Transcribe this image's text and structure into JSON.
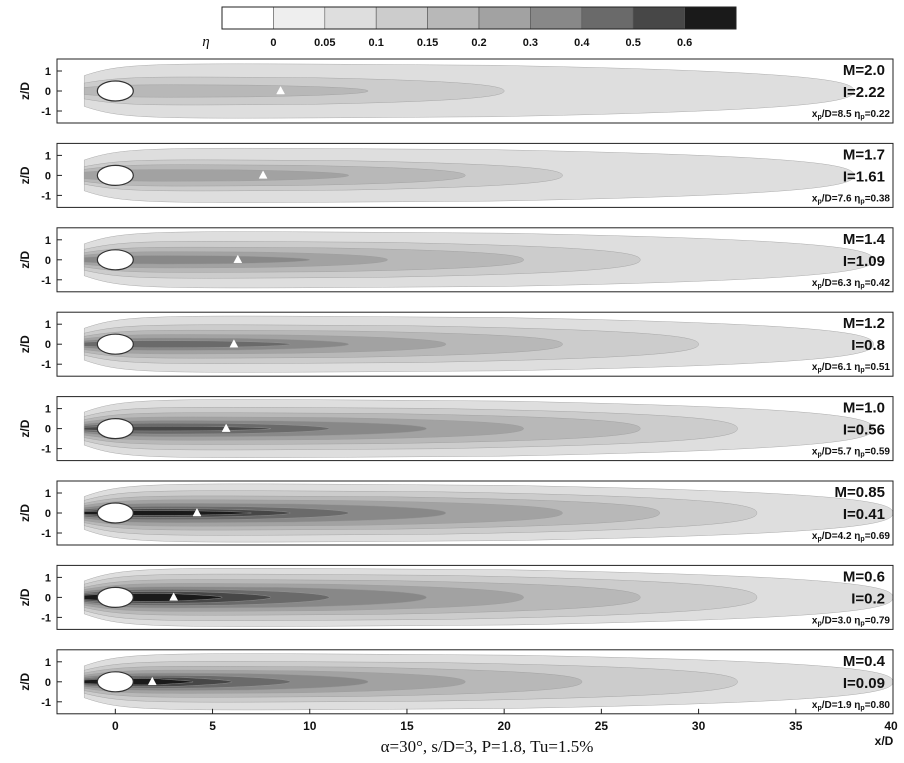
{
  "colorbar": {
    "symbol": "η",
    "levels": [
      0,
      0.05,
      0.1,
      0.15,
      0.2,
      0.3,
      0.4,
      0.5,
      0.6
    ],
    "tick_labels": [
      "0",
      "0.05",
      "0.1",
      "0.15",
      "0.2",
      "0.3",
      "0.4",
      "0.5",
      "0.6"
    ],
    "colors": [
      "#ffffff",
      "#eeeeee",
      "#dedede",
      "#cccccc",
      "#b8b8b8",
      "#a2a2a2",
      "#888888",
      "#6a6a6a",
      "#474747",
      "#1a1a1a"
    ]
  },
  "chart_data": {
    "type": "heatmap",
    "title": "α=30°, s/D=3, P=1.8, Tu=1.5%",
    "xlabel": "x/D",
    "ylabel": "z/D",
    "xlim": [
      -3,
      40
    ],
    "ylim": [
      -1.6,
      1.6
    ],
    "x_ticks": [
      0,
      5,
      10,
      15,
      20,
      25,
      30,
      35,
      40
    ],
    "x_tick_labels": [
      "0",
      "5",
      "10",
      "15",
      "20",
      "25",
      "30",
      "35",
      "40"
    ],
    "y_ticks": [
      1,
      0,
      -1
    ],
    "y_tick_labels": [
      "1",
      "0",
      "-1"
    ],
    "hole_center_x": 0,
    "hole_diameter": 1,
    "panels": [
      {
        "M_label": "M=2.0",
        "I_label": "I=2.22",
        "peak_label": "xp/D=8.5 ηp=0.22",
        "M": 2.0,
        "I": 2.22,
        "xp": 8.5,
        "etap": 0.22,
        "contours": [
          {
            "level": 0.05,
            "x_end": 38,
            "half_width": 1.4
          },
          {
            "level": 0.1,
            "x_end": 20,
            "half_width": 0.72
          },
          {
            "level": 0.15,
            "x_end": 13,
            "half_width": 0.32
          }
        ]
      },
      {
        "M_label": "M=1.7",
        "I_label": "I=1.61",
        "peak_label": "xp/D=7.6 ηp=0.38",
        "M": 1.7,
        "I": 1.61,
        "xp": 7.6,
        "etap": 0.38,
        "contours": [
          {
            "level": 0.05,
            "x_end": 38,
            "half_width": 1.4
          },
          {
            "level": 0.1,
            "x_end": 23,
            "half_width": 0.8
          },
          {
            "level": 0.15,
            "x_end": 18,
            "half_width": 0.55
          },
          {
            "level": 0.2,
            "x_end": 12,
            "half_width": 0.3
          }
        ]
      },
      {
        "M_label": "M=1.4",
        "I_label": "I=1.09",
        "peak_label": "xp/D=6.3 ηp=0.42",
        "M": 1.4,
        "I": 1.09,
        "xp": 6.3,
        "etap": 0.42,
        "contours": [
          {
            "level": 0.05,
            "x_end": 39,
            "half_width": 1.45
          },
          {
            "level": 0.1,
            "x_end": 27,
            "half_width": 0.95
          },
          {
            "level": 0.15,
            "x_end": 21,
            "half_width": 0.65
          },
          {
            "level": 0.2,
            "x_end": 14,
            "half_width": 0.42
          },
          {
            "level": 0.3,
            "x_end": 10,
            "half_width": 0.22
          }
        ]
      },
      {
        "M_label": "M=1.2",
        "I_label": "I=0.8",
        "peak_label": "xp/D=6.1 ηp=0.51",
        "M": 1.2,
        "I": 0.8,
        "xp": 6.1,
        "etap": 0.51,
        "contours": [
          {
            "level": 0.05,
            "x_end": 39,
            "half_width": 1.45
          },
          {
            "level": 0.1,
            "x_end": 30,
            "half_width": 1.0
          },
          {
            "level": 0.15,
            "x_end": 23,
            "half_width": 0.72
          },
          {
            "level": 0.2,
            "x_end": 17,
            "half_width": 0.5
          },
          {
            "level": 0.3,
            "x_end": 12,
            "half_width": 0.32
          },
          {
            "level": 0.4,
            "x_end": 9,
            "half_width": 0.18
          }
        ]
      },
      {
        "M_label": "M=1.0",
        "I_label": "I=0.56",
        "peak_label": "xp/D=5.7 ηp=0.59",
        "M": 1.0,
        "I": 0.56,
        "xp": 5.7,
        "etap": 0.59,
        "contours": [
          {
            "level": 0.05,
            "x_end": 39,
            "half_width": 1.5
          },
          {
            "level": 0.1,
            "x_end": 32,
            "half_width": 1.1
          },
          {
            "level": 0.15,
            "x_end": 27,
            "half_width": 0.82
          },
          {
            "level": 0.2,
            "x_end": 21,
            "half_width": 0.6
          },
          {
            "level": 0.3,
            "x_end": 16,
            "half_width": 0.42
          },
          {
            "level": 0.4,
            "x_end": 11,
            "half_width": 0.28
          },
          {
            "level": 0.5,
            "x_end": 8,
            "half_width": 0.12
          }
        ]
      },
      {
        "M_label": "M=0.85",
        "I_label": "I=0.41",
        "peak_label": "xp/D=4.2 ηp=0.69",
        "M": 0.85,
        "I": 0.41,
        "xp": 4.2,
        "etap": 0.69,
        "contours": [
          {
            "level": 0.05,
            "x_end": 40,
            "half_width": 1.5
          },
          {
            "level": 0.1,
            "x_end": 33,
            "half_width": 1.15
          },
          {
            "level": 0.15,
            "x_end": 28,
            "half_width": 0.88
          },
          {
            "level": 0.2,
            "x_end": 23,
            "half_width": 0.68
          },
          {
            "level": 0.3,
            "x_end": 17,
            "half_width": 0.5
          },
          {
            "level": 0.4,
            "x_end": 12,
            "half_width": 0.35
          },
          {
            "level": 0.5,
            "x_end": 9,
            "half_width": 0.22
          },
          {
            "level": 0.6,
            "x_end": 7,
            "half_width": 0.12
          }
        ]
      },
      {
        "M_label": "M=0.6",
        "I_label": "I=0.2",
        "peak_label": "xp/D=3.0 ηp=0.79",
        "M": 0.6,
        "I": 0.2,
        "xp": 3.0,
        "etap": 0.79,
        "contours": [
          {
            "level": 0.05,
            "x_end": 40,
            "half_width": 1.5
          },
          {
            "level": 0.1,
            "x_end": 33,
            "half_width": 1.2
          },
          {
            "level": 0.15,
            "x_end": 27,
            "half_width": 0.92
          },
          {
            "level": 0.2,
            "x_end": 21,
            "half_width": 0.72
          },
          {
            "level": 0.3,
            "x_end": 16,
            "half_width": 0.55
          },
          {
            "level": 0.4,
            "x_end": 11,
            "half_width": 0.42
          },
          {
            "level": 0.5,
            "x_end": 8,
            "half_width": 0.3
          },
          {
            "level": 0.6,
            "x_end": 5.5,
            "half_width": 0.2
          }
        ]
      },
      {
        "M_label": "M=0.4",
        "I_label": "I=0.09",
        "peak_label": "xp/D=1.9 ηp=0.80",
        "M": 0.4,
        "I": 0.09,
        "xp": 1.9,
        "etap": 0.8,
        "contours": [
          {
            "level": 0.05,
            "x_end": 40,
            "half_width": 1.45
          },
          {
            "level": 0.1,
            "x_end": 32,
            "half_width": 1.05
          },
          {
            "level": 0.15,
            "x_end": 24,
            "half_width": 0.8
          },
          {
            "level": 0.2,
            "x_end": 18,
            "half_width": 0.6
          },
          {
            "level": 0.3,
            "x_end": 13,
            "half_width": 0.45
          },
          {
            "level": 0.4,
            "x_end": 9,
            "half_width": 0.33
          },
          {
            "level": 0.5,
            "x_end": 6,
            "half_width": 0.24
          },
          {
            "level": 0.6,
            "x_end": 4,
            "half_width": 0.16
          }
        ]
      }
    ]
  }
}
